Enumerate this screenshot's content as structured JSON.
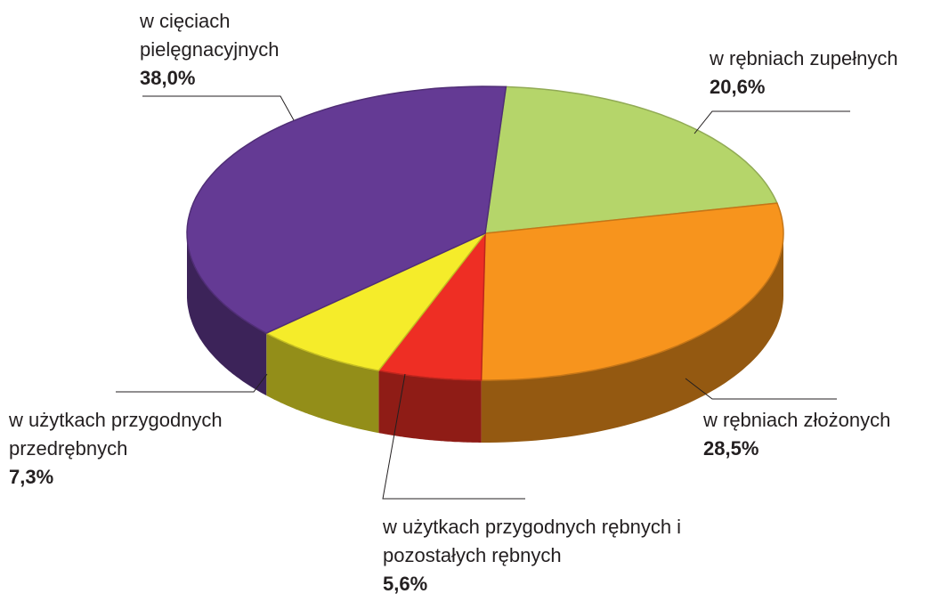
{
  "chart_data": {
    "type": "pie3d",
    "categories": [
      "w rębniach zupełnych",
      "w rębniach złożonych",
      "w użytkach przygodnych rębnych i pozostałych rębnych",
      "w użytkach przygodnych przedrębnych",
      "w cięciach pielęgnacyjnych"
    ],
    "values": [
      20.6,
      28.5,
      5.6,
      7.3,
      38.0
    ],
    "value_labels": [
      "20,6%",
      "28,5%",
      "5,6%",
      "7,3%",
      "38,0%"
    ],
    "colors": [
      "#b5d56a",
      "#f7941d",
      "#ee2e24",
      "#f5ec2a",
      "#643a94"
    ]
  }
}
